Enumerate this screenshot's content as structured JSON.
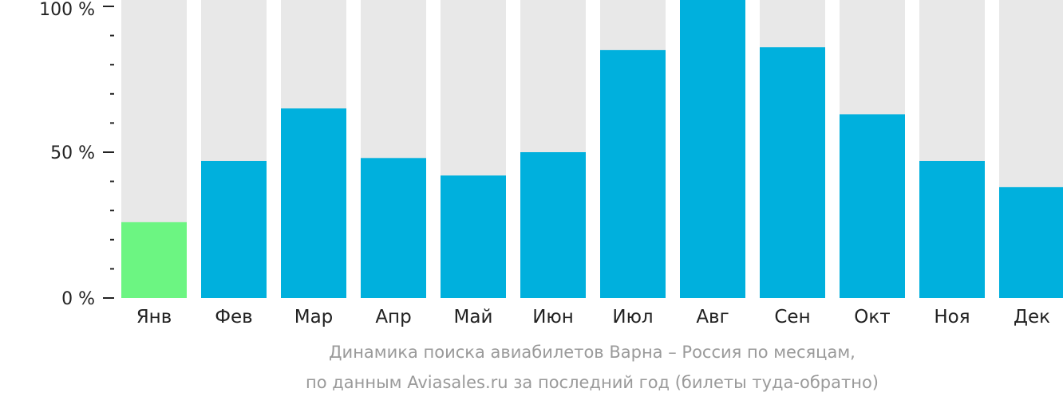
{
  "chart_data": {
    "type": "bar",
    "categories": [
      "Янв",
      "Фев",
      "Мар",
      "Апр",
      "Май",
      "Июн",
      "Июл",
      "Авг",
      "Сен",
      "Окт",
      "Ноя",
      "Дек"
    ],
    "values": [
      26,
      47,
      65,
      48,
      42,
      50,
      85,
      100,
      86,
      63,
      47,
      38
    ],
    "highlight_index": 0,
    "ylim": [
      0,
      100
    ],
    "yticks": [
      {
        "value": 0,
        "label": "0 %"
      },
      {
        "value": 50,
        "label": "50 %"
      },
      {
        "value": 100,
        "label": "100 %"
      }
    ],
    "minor_tick_step": 10,
    "colors": {
      "bar": "#00b0dd",
      "highlight": "#6cf582",
      "background_bar": "#e8e8e8",
      "axis": "#222222",
      "tick_label": "#222222",
      "caption": "#9a9a9a"
    },
    "caption": [
      "Динамика поиска авиабилетов Варна – Россия по месяцам,",
      "по данным Aviasales.ru за последний год (билеты туда-обратно)"
    ]
  }
}
